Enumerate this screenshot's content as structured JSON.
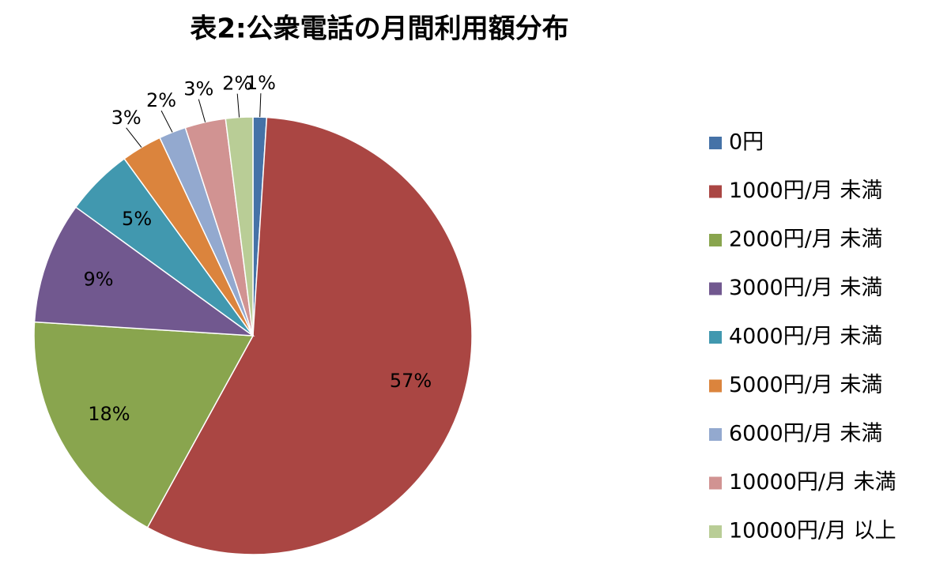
{
  "chart_data": {
    "type": "pie",
    "title": "表2:公衆電話の月間利用額分布",
    "categories": [
      "0円",
      "1000円/月 未満",
      "2000円/月 未満",
      "3000円/月 未満",
      "4000円/月 未満",
      "5000円/月 未満",
      "6000円/月 未満",
      "10000円/月 未満",
      "10000円/月 以上"
    ],
    "values": [
      1,
      57,
      18,
      9,
      5,
      3,
      2,
      3,
      2
    ],
    "value_labels": [
      "1%",
      "57%",
      "18%",
      "9%",
      "5%",
      "3%",
      "2%",
      "3%",
      "2%"
    ],
    "colors": [
      "#4572a7",
      "#aa4643",
      "#89a54e",
      "#71588f",
      "#4198af",
      "#db843d",
      "#93a9cf",
      "#d19392",
      "#b9cd96"
    ],
    "legend": "right"
  }
}
